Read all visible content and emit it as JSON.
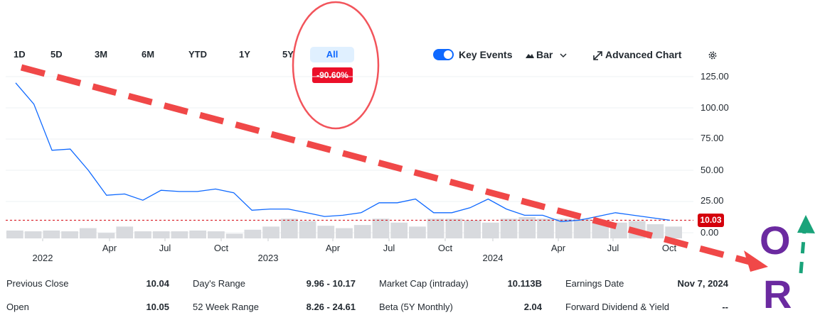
{
  "range_buttons": [
    "1D",
    "5D",
    "3M",
    "6M",
    "YTD",
    "1Y",
    "5Y",
    "All"
  ],
  "active_range": "All",
  "change_badge": "-90.60%",
  "toolbar": {
    "key_events_label": "Key Events",
    "key_events_on": true,
    "chart_type_label": "Bar",
    "advanced_chart_label": "Advanced Chart"
  },
  "current_price_label": "10.03",
  "chart_data": {
    "type": "line",
    "y_ticks": [
      "125.00",
      "100.00",
      "75.00",
      "50.00",
      "25.00",
      "0.00"
    ],
    "ylim": [
      0,
      130
    ],
    "x_tick_labels": [
      "2022",
      "Apr",
      "Jul",
      "Oct",
      "2023",
      "Apr",
      "Jul",
      "Oct",
      "2024",
      "Apr",
      "Jul",
      "Oct"
    ],
    "series": [
      {
        "values": [
          120,
          103,
          66,
          67,
          50,
          30,
          31,
          26,
          34,
          33,
          33,
          35,
          32,
          18,
          19,
          19,
          16,
          13,
          14,
          16,
          24,
          24,
          27,
          16,
          16,
          20,
          27,
          19,
          14,
          14,
          9,
          10,
          13,
          16,
          14,
          12,
          10
        ]
      }
    ],
    "volume": [
      1.0,
      0.9,
      1.0,
      0.9,
      1.3,
      0.7,
      1.5,
      0.9,
      0.9,
      0.9,
      1.0,
      0.9,
      0.6,
      1.1,
      1.5,
      2.5,
      2.2,
      1.6,
      1.3,
      1.7,
      2.5,
      2.0,
      1.5,
      2.5,
      2.5,
      2.3,
      2.0,
      2.5,
      2.7,
      2.5,
      2.5,
      2.5,
      2.3,
      2.0,
      2.2,
      1.8,
      1.5
    ],
    "reference_price": 10.03,
    "grid": true
  },
  "stats": {
    "col1": [
      {
        "label": "Previous Close",
        "value": "10.04"
      },
      {
        "label": "Open",
        "value": "10.05"
      }
    ],
    "col2": [
      {
        "label": "Day's Range",
        "value": "9.96 - 10.17"
      },
      {
        "label": "52 Week Range",
        "value": "8.26 - 24.61"
      }
    ],
    "col3": [
      {
        "label": "Market Cap (intraday)",
        "value": "10.113B"
      },
      {
        "label": "Beta (5Y Monthly)",
        "value": "2.04"
      }
    ],
    "col4": [
      {
        "label": "Earnings Date",
        "value": "Nov 7, 2024"
      },
      {
        "label": "Forward Dividend & Yield",
        "value": "--"
      }
    ]
  },
  "annotation": {
    "letter_top": "O",
    "letter_bottom": "R"
  }
}
